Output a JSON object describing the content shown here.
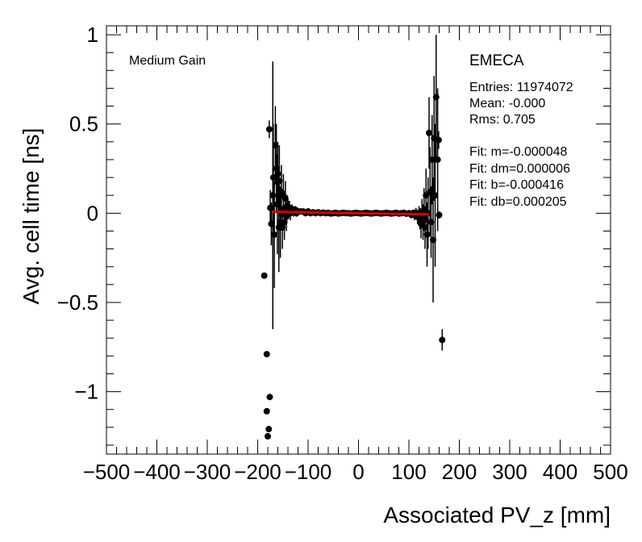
{
  "chart_data": {
    "type": "scatter",
    "xlabel": "Associated PV_z [mm]",
    "ylabel": "Avg. cell time [ns]",
    "xlim": [
      -500,
      500
    ],
    "ylim": [
      -1.35,
      1.05
    ],
    "x_ticks": [
      -500,
      -400,
      -300,
      -200,
      -100,
      0,
      100,
      200,
      300,
      400,
      500
    ],
    "x_tick_labels": [
      "−500",
      "−400",
      "−300",
      "−200",
      "−100",
      "0",
      "100",
      "200",
      "300",
      "400",
      "500"
    ],
    "y_ticks": [
      1,
      0.5,
      0,
      -0.5,
      -1
    ],
    "y_tick_labels": [
      "1",
      "0.5",
      "0",
      "−0.5",
      "−1"
    ],
    "annotation": "Medium Gain",
    "stats": {
      "title": "EMECA",
      "lines": [
        "Entries: 11974072",
        "Mean: -0.000",
        "Rms: 0.705",
        "",
        "Fit: m=-0.000048",
        "Fit: dm=0.000006",
        "Fit: b=-0.000416",
        "Fit: db=0.000205"
      ]
    },
    "points": [
      {
        "x": -187,
        "y": -0.35,
        "err": 0
      },
      {
        "x": -182,
        "y": -0.79,
        "err": 0
      },
      {
        "x": -182,
        "y": -1.11,
        "err": 0
      },
      {
        "x": -180,
        "y": -1.25,
        "err": 0
      },
      {
        "x": -178,
        "y": -1.21,
        "err": 0
      },
      {
        "x": -176,
        "y": -1.03,
        "err": 0
      },
      {
        "x": -177,
        "y": 0.47,
        "err": 0.05
      },
      {
        "x": -175,
        "y": 0.03,
        "err": 0.1
      },
      {
        "x": -173,
        "y": -0.06,
        "err": 0.12
      },
      {
        "x": -170,
        "y": 0.1,
        "err": 0.75
      },
      {
        "x": -169,
        "y": 0.2,
        "err": 0.3
      },
      {
        "x": -167,
        "y": -0.12,
        "err": 0.3
      },
      {
        "x": -165,
        "y": 0.38,
        "err": 0.22
      },
      {
        "x": -163,
        "y": 0.25,
        "err": 0.25
      },
      {
        "x": -161,
        "y": 0.05,
        "err": 0.28
      },
      {
        "x": -160,
        "y": 0.22,
        "err": 0.18
      },
      {
        "x": -158,
        "y": -0.08,
        "err": 0.25
      },
      {
        "x": -157,
        "y": 0.18,
        "err": 0.2
      },
      {
        "x": -155,
        "y": -0.05,
        "err": 0.2
      },
      {
        "x": -153,
        "y": 0.12,
        "err": 0.15
      },
      {
        "x": -151,
        "y": -0.08,
        "err": 0.12
      },
      {
        "x": -149,
        "y": 0.1,
        "err": 0.12
      },
      {
        "x": -147,
        "y": -0.05,
        "err": 0.1
      },
      {
        "x": -145,
        "y": 0.08,
        "err": 0.1
      },
      {
        "x": -143,
        "y": -0.02,
        "err": 0.08
      },
      {
        "x": -141,
        "y": 0.04,
        "err": 0.06
      },
      {
        "x": -139,
        "y": 0.02,
        "err": 0.05
      },
      {
        "x": -137,
        "y": 0.03,
        "err": 0.04
      },
      {
        "x": -135,
        "y": 0.0,
        "err": 0.04
      },
      {
        "x": -132,
        "y": 0.02,
        "err": 0.03
      },
      {
        "x": -129,
        "y": 0.01,
        "err": 0.03
      },
      {
        "x": -126,
        "y": 0.02,
        "err": 0.02
      },
      {
        "x": -123,
        "y": 0.0,
        "err": 0.02
      },
      {
        "x": -120,
        "y": 0.01,
        "err": 0.02
      },
      {
        "x": -115,
        "y": 0.01,
        "err": 0.01
      },
      {
        "x": -110,
        "y": 0.01,
        "err": 0.01
      },
      {
        "x": -105,
        "y": 0.0,
        "err": 0.01
      },
      {
        "x": -100,
        "y": 0.01,
        "err": 0.01
      },
      {
        "x": -95,
        "y": 0.0,
        "err": 0.01
      },
      {
        "x": -90,
        "y": 0.005,
        "err": 0.01
      },
      {
        "x": -85,
        "y": 0.0,
        "err": 0.005
      },
      {
        "x": -80,
        "y": 0.005,
        "err": 0.005
      },
      {
        "x": -75,
        "y": 0.0,
        "err": 0.005
      },
      {
        "x": -70,
        "y": 0.003,
        "err": 0.005
      },
      {
        "x": -65,
        "y": 0.0,
        "err": 0.005
      },
      {
        "x": -60,
        "y": 0.002,
        "err": 0.005
      },
      {
        "x": -55,
        "y": -0.002,
        "err": 0.005
      },
      {
        "x": -50,
        "y": 0.0,
        "err": 0.005
      },
      {
        "x": -45,
        "y": 0.002,
        "err": 0.005
      },
      {
        "x": -40,
        "y": -0.002,
        "err": 0.005
      },
      {
        "x": -35,
        "y": 0.0,
        "err": 0.005
      },
      {
        "x": -30,
        "y": 0.002,
        "err": 0.005
      },
      {
        "x": -25,
        "y": 0.0,
        "err": 0.005
      },
      {
        "x": -20,
        "y": 0.0,
        "err": 0.005
      },
      {
        "x": -15,
        "y": -0.002,
        "err": 0.005
      },
      {
        "x": -10,
        "y": 0.0,
        "err": 0.005
      },
      {
        "x": -5,
        "y": 0.002,
        "err": 0.005
      },
      {
        "x": 0,
        "y": 0.0,
        "err": 0.005
      },
      {
        "x": 5,
        "y": -0.002,
        "err": 0.005
      },
      {
        "x": 10,
        "y": 0.0,
        "err": 0.005
      },
      {
        "x": 15,
        "y": 0.002,
        "err": 0.005
      },
      {
        "x": 20,
        "y": 0.0,
        "err": 0.005
      },
      {
        "x": 25,
        "y": -0.002,
        "err": 0.005
      },
      {
        "x": 30,
        "y": 0.0,
        "err": 0.005
      },
      {
        "x": 35,
        "y": 0.002,
        "err": 0.005
      },
      {
        "x": 40,
        "y": 0.0,
        "err": 0.005
      },
      {
        "x": 45,
        "y": -0.002,
        "err": 0.005
      },
      {
        "x": 50,
        "y": 0.0,
        "err": 0.005
      },
      {
        "x": 55,
        "y": 0.002,
        "err": 0.005
      },
      {
        "x": 60,
        "y": 0.0,
        "err": 0.005
      },
      {
        "x": 65,
        "y": -0.002,
        "err": 0.005
      },
      {
        "x": 70,
        "y": 0.0,
        "err": 0.005
      },
      {
        "x": 75,
        "y": 0.002,
        "err": 0.008
      },
      {
        "x": 80,
        "y": -0.002,
        "err": 0.008
      },
      {
        "x": 85,
        "y": 0.0,
        "err": 0.01
      },
      {
        "x": 90,
        "y": 0.002,
        "err": 0.01
      },
      {
        "x": 95,
        "y": -0.003,
        "err": 0.012
      },
      {
        "x": 100,
        "y": 0.0,
        "err": 0.015
      },
      {
        "x": 105,
        "y": -0.01,
        "err": 0.02
      },
      {
        "x": 108,
        "y": 0.0,
        "err": 0.02
      },
      {
        "x": 111,
        "y": -0.01,
        "err": 0.03
      },
      {
        "x": 114,
        "y": 0.0,
        "err": 0.03
      },
      {
        "x": 117,
        "y": -0.02,
        "err": 0.04
      },
      {
        "x": 120,
        "y": -0.01,
        "err": 0.05
      },
      {
        "x": 122,
        "y": -0.03,
        "err": 0.06
      },
      {
        "x": 124,
        "y": -0.06,
        "err": 0.08
      },
      {
        "x": 126,
        "y": 0.0,
        "err": 0.08
      },
      {
        "x": 128,
        "y": -0.05,
        "err": 0.1
      },
      {
        "x": 130,
        "y": 0.02,
        "err": 0.12
      },
      {
        "x": 132,
        "y": -0.08,
        "err": 0.12
      },
      {
        "x": 134,
        "y": 0.1,
        "err": 0.15
      },
      {
        "x": 136,
        "y": -0.12,
        "err": 0.18
      },
      {
        "x": 138,
        "y": 0.0,
        "err": 0.2
      },
      {
        "x": 140,
        "y": 0.45,
        "err": 0.2
      },
      {
        "x": 142,
        "y": 0.12,
        "err": 0.25
      },
      {
        "x": 144,
        "y": -0.05,
        "err": 0.2
      },
      {
        "x": 146,
        "y": 0.3,
        "err": 0.25
      },
      {
        "x": 148,
        "y": -0.15,
        "err": 0.35
      },
      {
        "x": 150,
        "y": 0.42,
        "err": 0.35
      },
      {
        "x": 152,
        "y": 0.1,
        "err": 0.4
      },
      {
        "x": 154,
        "y": 0.65,
        "err": 0.35
      },
      {
        "x": 157,
        "y": 0.3,
        "err": 0.4
      },
      {
        "x": 159,
        "y": 0.41,
        "err": 0.05
      },
      {
        "x": 160,
        "y": -0.01,
        "err": 0.02
      },
      {
        "x": 166,
        "y": -0.71,
        "err": 0.06
      }
    ],
    "fit": {
      "m": -4.8e-05,
      "b": -0.000416,
      "x_range": [
        -170,
        140
      ],
      "color": "#e00000"
    },
    "grid": false,
    "legend": "none"
  }
}
